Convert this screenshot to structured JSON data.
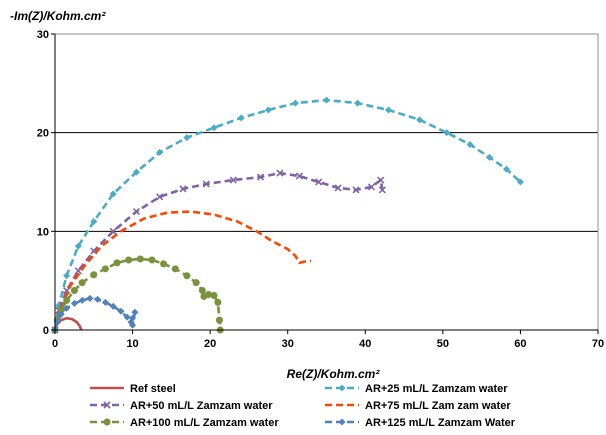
{
  "chart_data": {
    "type": "scatter",
    "title": "",
    "xlabel": "Re(Z)/Kohm.cm²",
    "ylabel": "-Im(Z)/Kohm.cm²",
    "xlim": [
      0,
      70
    ],
    "ylim": [
      0,
      30
    ],
    "x_ticks": [
      "0",
      "10",
      "20",
      "30",
      "40",
      "50",
      "60",
      "70"
    ],
    "y_ticks": [
      "0",
      "10",
      "20",
      "30"
    ],
    "grid": "horizontal",
    "legend_position": "bottom",
    "series": [
      {
        "name": "Ref steel",
        "color": "#c0504d",
        "dash": "solid",
        "marker": "none",
        "points": [
          [
            0.0,
            0.0
          ],
          [
            0.3,
            0.6
          ],
          [
            0.8,
            1.0
          ],
          [
            1.5,
            1.2
          ],
          [
            2.2,
            1.1
          ],
          [
            2.8,
            0.8
          ],
          [
            3.2,
            0.4
          ],
          [
            3.4,
            0.0
          ]
        ]
      },
      {
        "name": "AR+25 mL/L Zamzam water",
        "color": "#4bacc6",
        "dash": "dash",
        "marker": "diamond",
        "points": [
          [
            0.0,
            0.0
          ],
          [
            0.5,
            2.5
          ],
          [
            1.5,
            5.5
          ],
          [
            3.0,
            8.5
          ],
          [
            5.0,
            11.0
          ],
          [
            7.5,
            13.8
          ],
          [
            10.5,
            16.0
          ],
          [
            13.5,
            18.0
          ],
          [
            17.0,
            19.5
          ],
          [
            20.5,
            20.5
          ],
          [
            24.0,
            21.5
          ],
          [
            27.5,
            22.3
          ],
          [
            31.0,
            23.0
          ],
          [
            35.0,
            23.3
          ],
          [
            39.0,
            23.0
          ],
          [
            43.0,
            22.3
          ],
          [
            47.0,
            21.3
          ],
          [
            50.5,
            20.0
          ],
          [
            53.5,
            18.8
          ],
          [
            56.0,
            17.5
          ],
          [
            58.2,
            16.3
          ],
          [
            60.0,
            15.0
          ]
        ]
      },
      {
        "name": "AR+50 mL/L Zamzam water",
        "color": "#8064a2",
        "dash": "dash",
        "marker": "x",
        "points": [
          [
            0.0,
            0.0
          ],
          [
            0.5,
            2.0
          ],
          [
            1.5,
            4.0
          ],
          [
            3.0,
            6.0
          ],
          [
            5.0,
            8.0
          ],
          [
            7.5,
            10.0
          ],
          [
            10.5,
            12.0
          ],
          [
            13.5,
            13.5
          ],
          [
            16.5,
            14.3
          ],
          [
            19.5,
            14.8
          ],
          [
            23.0,
            15.2
          ],
          [
            26.5,
            15.5
          ],
          [
            29.0,
            15.9
          ],
          [
            31.5,
            15.6
          ],
          [
            34.0,
            15.0
          ],
          [
            36.5,
            14.4
          ],
          [
            38.8,
            14.2
          ],
          [
            40.8,
            14.5
          ],
          [
            42.0,
            15.2
          ],
          [
            42.2,
            14.2
          ]
        ]
      },
      {
        "name": "AR+75 mL/L Zam zam water",
        "color": "#ff4500",
        "dash": "dash",
        "marker": "none",
        "points": [
          [
            0.0,
            0.0
          ],
          [
            0.8,
            2.2
          ],
          [
            2.0,
            4.5
          ],
          [
            3.8,
            6.5
          ],
          [
            6.0,
            8.5
          ],
          [
            8.5,
            10.0
          ],
          [
            11.5,
            11.3
          ],
          [
            14.5,
            11.9
          ],
          [
            17.5,
            12.0
          ],
          [
            20.5,
            11.7
          ],
          [
            23.5,
            11.0
          ],
          [
            26.0,
            10.0
          ],
          [
            28.0,
            9.0
          ],
          [
            30.0,
            8.2
          ],
          [
            31.0,
            7.5
          ],
          [
            31.5,
            6.8
          ],
          [
            32.5,
            7.0
          ],
          [
            33.0,
            7.0
          ]
        ]
      },
      {
        "name": "AR+100 mL/L Zamzam water",
        "color": "#77933c",
        "dash": "dash",
        "marker": "circle",
        "points": [
          [
            0.0,
            0.0
          ],
          [
            0.3,
            1.0
          ],
          [
            0.8,
            2.0
          ],
          [
            1.5,
            3.0
          ],
          [
            2.5,
            4.0
          ],
          [
            3.5,
            4.8
          ],
          [
            5.0,
            5.6
          ],
          [
            6.5,
            6.2
          ],
          [
            8.0,
            6.8
          ],
          [
            9.5,
            7.1
          ],
          [
            11.0,
            7.2
          ],
          [
            12.5,
            7.1
          ],
          [
            14.0,
            6.7
          ],
          [
            15.5,
            6.2
          ],
          [
            17.0,
            5.5
          ],
          [
            18.2,
            4.8
          ],
          [
            19.0,
            4.0
          ],
          [
            19.2,
            3.4
          ],
          [
            19.8,
            3.6
          ],
          [
            20.5,
            3.5
          ],
          [
            21.0,
            2.8
          ],
          [
            21.2,
            1.0
          ],
          [
            21.3,
            0.0
          ]
        ]
      },
      {
        "name": "AR+125 mL/L Zamzam Water",
        "color": "#4f81bd",
        "dash": "dash",
        "marker": "diamond",
        "points": [
          [
            0.0,
            0.0
          ],
          [
            0.3,
            0.8
          ],
          [
            0.8,
            1.6
          ],
          [
            1.5,
            2.2
          ],
          [
            2.5,
            2.7
          ],
          [
            3.5,
            3.0
          ],
          [
            4.5,
            3.2
          ],
          [
            5.5,
            3.1
          ],
          [
            6.5,
            2.8
          ],
          [
            7.5,
            2.4
          ],
          [
            8.5,
            1.9
          ],
          [
            9.3,
            1.3
          ],
          [
            9.8,
            0.8
          ],
          [
            10.0,
            1.2
          ],
          [
            10.3,
            1.8
          ],
          [
            10.0,
            0.5
          ]
        ]
      }
    ]
  }
}
